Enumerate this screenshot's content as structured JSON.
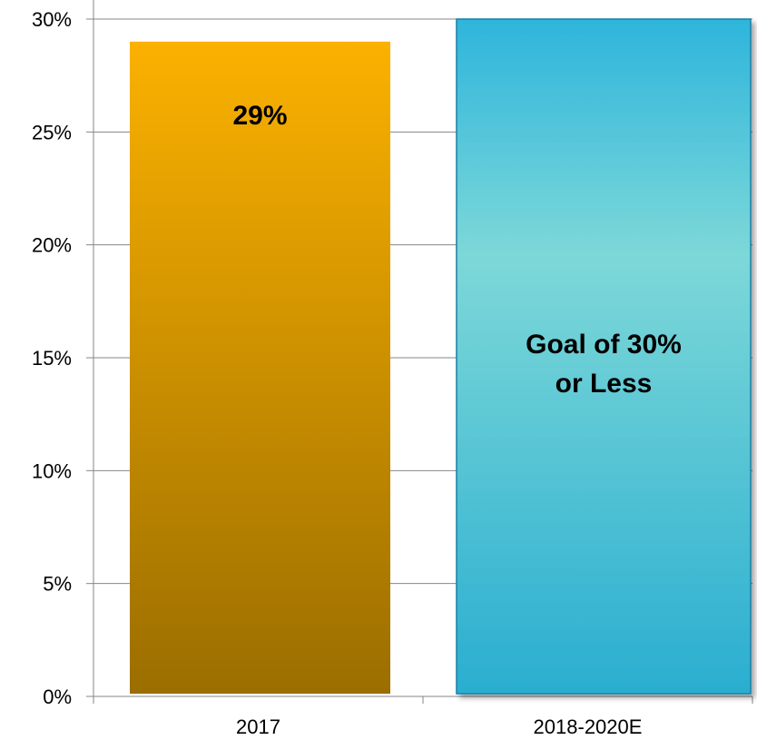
{
  "chart_data": {
    "type": "bar",
    "categories": [
      "2017",
      "2018-2020E"
    ],
    "values": [
      29,
      30
    ],
    "data_labels": [
      [
        "29%"
      ],
      [
        "Goal of 30%",
        "or Less"
      ]
    ],
    "ylim": [
      0,
      30
    ],
    "y_ticks": [
      0,
      5,
      10,
      15,
      20,
      25,
      30
    ],
    "y_tick_labels": [
      "0%",
      "5%",
      "10%",
      "15%",
      "20%",
      "25%",
      "30%"
    ],
    "grid": true,
    "legend": "none",
    "colors": {
      "bar_2017_top": "#fbb100",
      "bar_2017_bottom": "#9b6e00",
      "bar_goal_top": "#2eb5dc",
      "bar_goal_mid": "#7dd8d8",
      "bar_goal_bottom": "#2aaed0",
      "bar_goal_border": "#1a7fa4",
      "grid": "#868686",
      "axis": "#868686"
    }
  }
}
